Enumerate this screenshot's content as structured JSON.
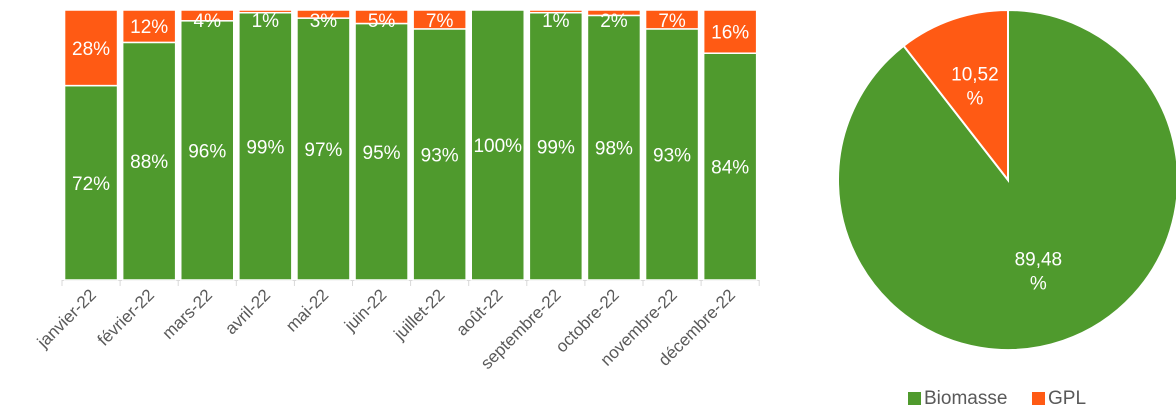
{
  "chart_data": [
    {
      "type": "bar",
      "stacked": true,
      "percent": true,
      "categories": [
        "janvier-22",
        "février-22",
        "mars-22",
        "avril-22",
        "mai-22",
        "juin-22",
        "juillet-22",
        "août-22",
        "septembre-22",
        "octobre-22",
        "novembre-22",
        "décembre-22"
      ],
      "series": [
        {
          "name": "Biomasse",
          "color": "#4f9a2d",
          "values": [
            72,
            88,
            96,
            99,
            97,
            95,
            93,
            100,
            99,
            98,
            93,
            84
          ],
          "labels": [
            "72%",
            "88%",
            "96%",
            "99%",
            "97%",
            "95%",
            "93%",
            "100%",
            "99%",
            "98%",
            "93%",
            "84%"
          ]
        },
        {
          "name": "GPL",
          "color": "#ff5a14",
          "values": [
            28,
            12,
            4,
            1,
            3,
            5,
            7,
            0,
            1,
            2,
            7,
            16
          ],
          "labels": [
            "28%",
            "12%",
            "4%",
            "1%",
            "3%",
            "5%",
            "7%",
            "",
            "1%",
            "2%",
            "7%",
            "16%"
          ]
        }
      ],
      "ylim": [
        0,
        100
      ],
      "title": "",
      "xlabel": "",
      "ylabel": "",
      "grid": false
    },
    {
      "type": "pie",
      "slices": [
        {
          "name": "Biomasse",
          "value": 89.48,
          "label": [
            "89,48",
            "%"
          ],
          "color": "#4f9a2d"
        },
        {
          "name": "GPL",
          "value": 10.52,
          "label": [
            "10,52",
            "%"
          ],
          "color": "#ff5a14"
        }
      ],
      "legend": {
        "placement": "bottom",
        "entries": [
          "Biomasse",
          "GPL"
        ]
      },
      "title": ""
    }
  ]
}
